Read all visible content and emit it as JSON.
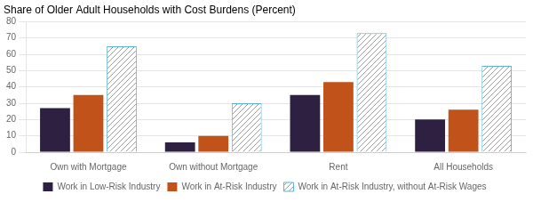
{
  "chart_data": {
    "type": "bar",
    "title": "Share of Older Adult Households with Cost Burdens (Percent)",
    "categories": [
      "Own with Mortgage",
      "Own without Mortgage",
      "Rent",
      "All Households"
    ],
    "series": [
      {
        "name": "Work in Low-Risk Industry",
        "color": "#2d2040",
        "values": [
          27,
          6,
          35,
          20
        ]
      },
      {
        "name": "Work in At-Risk Industry",
        "color": "#c0521a",
        "values": [
          35,
          10,
          43,
          26
        ]
      },
      {
        "name": "Work in At-Risk Industry, without At-Risk Wages",
        "color": "#5ab4d6",
        "values": [
          65,
          30,
          73,
          53
        ]
      }
    ],
    "ylim": [
      0,
      80
    ],
    "yticks": [
      0,
      10,
      20,
      30,
      40,
      50,
      60,
      70,
      80
    ],
    "grid": true,
    "legend": "bottom"
  }
}
